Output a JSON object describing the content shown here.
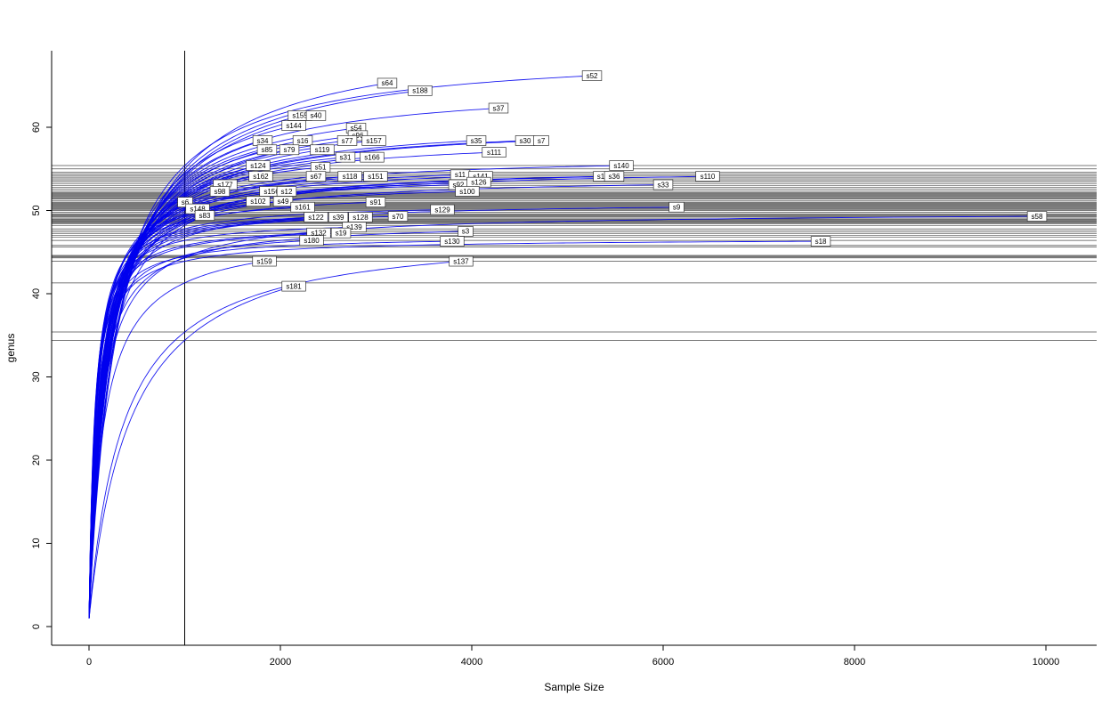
{
  "chart_data": {
    "type": "line",
    "subtype": "rarefaction-curves",
    "title": "",
    "xlabel": "Sample Size",
    "ylabel": "genus",
    "xlim": [
      0,
      10500
    ],
    "ylim": [
      0,
      67
    ],
    "x_ticks": [
      0,
      2000,
      4000,
      6000,
      8000,
      10000
    ],
    "y_ticks": [
      0,
      10,
      20,
      30,
      40,
      50,
      60
    ],
    "grid": false,
    "legend_position": "none",
    "vertical_line_x": 1000,
    "colors": {
      "curve": "#0000EE",
      "richness_line": "#2e2e2e",
      "axis": "#000000",
      "label_box_fill": "#ffffff",
      "label_box_border": "#333333"
    },
    "series": [
      {
        "label": "s52",
        "x_end": 5256,
        "y_end": 66.2,
        "y_line": 55.4
      },
      {
        "label": "s64",
        "x_end": 3116,
        "y_end": 65.3,
        "y_line": 55.0
      },
      {
        "label": "s188",
        "x_end": 3460,
        "y_end": 64.4,
        "y_line": 54.6
      },
      {
        "label": "s37",
        "x_end": 4279,
        "y_end": 62.3,
        "y_line": 53.8
      },
      {
        "label": "s155",
        "x_end": 2205,
        "y_end": 61.4,
        "y_line": 54.2
      },
      {
        "label": "s40",
        "x_end": 2372,
        "y_end": 61.4,
        "y_line": 54.0
      },
      {
        "label": "s144",
        "x_end": 2140,
        "y_end": 60.2,
        "y_line": 54.4
      },
      {
        "label": "s54",
        "x_end": 2791,
        "y_end": 59.9,
        "y_line": 53.4
      },
      {
        "label": "s96",
        "x_end": 2809,
        "y_end": 59.0,
        "y_line": 53.0
      },
      {
        "label": "s34",
        "x_end": 1814,
        "y_end": 58.4,
        "y_line": 53.6
      },
      {
        "label": "s16",
        "x_end": 2233,
        "y_end": 58.4,
        "y_line": 53.2
      },
      {
        "label": "s77",
        "x_end": 2698,
        "y_end": 58.4,
        "y_line": 52.6
      },
      {
        "label": "s157",
        "x_end": 2977,
        "y_end": 58.4,
        "y_line": 52.4
      },
      {
        "label": "s35",
        "x_end": 4047,
        "y_end": 58.4,
        "y_line": 51.8
      },
      {
        "label": "s30",
        "x_end": 4558,
        "y_end": 58.4,
        "y_line": 51.6
      },
      {
        "label": "s7",
        "x_end": 4726,
        "y_end": 58.4,
        "y_line": 51.4
      },
      {
        "label": "s85",
        "x_end": 1860,
        "y_end": 57.3,
        "y_line": 52.8
      },
      {
        "label": "s79",
        "x_end": 2093,
        "y_end": 57.3,
        "y_line": 52.2
      },
      {
        "label": "s119",
        "x_end": 2437,
        "y_end": 57.3,
        "y_line": 52.0
      },
      {
        "label": "s111",
        "x_end": 4233,
        "y_end": 57.0,
        "y_line": 51.2
      },
      {
        "label": "s31",
        "x_end": 2679,
        "y_end": 56.4,
        "y_line": 51.9
      },
      {
        "label": "s166",
        "x_end": 2958,
        "y_end": 56.4,
        "y_line": 51.7
      },
      {
        "label": "s124",
        "x_end": 1767,
        "y_end": 55.4,
        "y_line": 52.1
      },
      {
        "label": "s51",
        "x_end": 2419,
        "y_end": 55.2,
        "y_line": 51.5
      },
      {
        "label": "s140",
        "x_end": 5563,
        "y_end": 55.4,
        "y_line": 50.2
      },
      {
        "label": "s162",
        "x_end": 1795,
        "y_end": 54.1,
        "y_line": 51.0
      },
      {
        "label": "s67",
        "x_end": 2372,
        "y_end": 54.1,
        "y_line": 50.8
      },
      {
        "label": "s118",
        "x_end": 2726,
        "y_end": 54.1,
        "y_line": 50.6
      },
      {
        "label": "s151",
        "x_end": 2995,
        "y_end": 54.1,
        "y_line": 50.4
      },
      {
        "label": "s11",
        "x_end": 3879,
        "y_end": 54.3,
        "y_line": 50.0
      },
      {
        "label": "s141",
        "x_end": 4093,
        "y_end": 54.1,
        "y_line": 49.8
      },
      {
        "label": "s1",
        "x_end": 5349,
        "y_end": 54.1,
        "y_line": 49.0
      },
      {
        "label": "s36",
        "x_end": 5488,
        "y_end": 54.1,
        "y_line": 48.8
      },
      {
        "label": "s110",
        "x_end": 6465,
        "y_end": 54.1,
        "y_line": 48.6
      },
      {
        "label": "s177",
        "x_end": 1423,
        "y_end": 53.1,
        "y_line": 50.9
      },
      {
        "label": "s92",
        "x_end": 3860,
        "y_end": 53.1,
        "y_line": 49.4
      },
      {
        "label": "s126",
        "x_end": 4074,
        "y_end": 53.4,
        "y_line": 49.2
      },
      {
        "label": "s33",
        "x_end": 6000,
        "y_end": 53.1,
        "y_line": 48.4
      },
      {
        "label": "s98",
        "x_end": 1367,
        "y_end": 52.3,
        "y_line": 50.7
      },
      {
        "label": "s156",
        "x_end": 1907,
        "y_end": 52.3,
        "y_line": 50.3
      },
      {
        "label": "s12",
        "x_end": 2065,
        "y_end": 52.3,
        "y_line": 50.1
      },
      {
        "label": "s100",
        "x_end": 3953,
        "y_end": 52.3,
        "y_line": 48.9
      },
      {
        "label": "s6",
        "x_end": 1005,
        "y_end": 51.0,
        "y_line": 50.5
      },
      {
        "label": "s148",
        "x_end": 1135,
        "y_end": 50.2,
        "y_line": 49.6
      },
      {
        "label": "s102",
        "x_end": 1767,
        "y_end": 51.1,
        "y_line": 49.5
      },
      {
        "label": "s49",
        "x_end": 2028,
        "y_end": 51.1,
        "y_line": 49.3
      },
      {
        "label": "s161",
        "x_end": 2233,
        "y_end": 50.4,
        "y_line": 48.7
      },
      {
        "label": "s91",
        "x_end": 2995,
        "y_end": 51.0,
        "y_line": 48.5
      },
      {
        "label": "s129",
        "x_end": 3693,
        "y_end": 50.1,
        "y_line": 47.8
      },
      {
        "label": "s9",
        "x_end": 6140,
        "y_end": 50.4,
        "y_line": 46.8
      },
      {
        "label": "s83",
        "x_end": 1209,
        "y_end": 49.4,
        "y_line": 48.2
      },
      {
        "label": "s122",
        "x_end": 2372,
        "y_end": 49.2,
        "y_line": 47.6
      },
      {
        "label": "s39",
        "x_end": 2605,
        "y_end": 49.2,
        "y_line": 47.4
      },
      {
        "label": "s128",
        "x_end": 2837,
        "y_end": 49.2,
        "y_line": 47.2
      },
      {
        "label": "s70",
        "x_end": 3228,
        "y_end": 49.3,
        "y_line": 47.0
      },
      {
        "label": "s58",
        "x_end": 9907,
        "y_end": 49.3,
        "y_line": 44.4
      },
      {
        "label": "s139",
        "x_end": 2772,
        "y_end": 48.0,
        "y_line": 46.4
      },
      {
        "label": "s132",
        "x_end": 2400,
        "y_end": 47.3,
        "y_line": 45.8
      },
      {
        "label": "s19",
        "x_end": 2633,
        "y_end": 47.3,
        "y_line": 45.6
      },
      {
        "label": "s3",
        "x_end": 3935,
        "y_end": 47.5,
        "y_line": 44.3
      },
      {
        "label": "s180",
        "x_end": 2326,
        "y_end": 46.4,
        "y_line": 44.6
      },
      {
        "label": "s130",
        "x_end": 3795,
        "y_end": 46.3,
        "y_line": 44.5
      },
      {
        "label": "s18",
        "x_end": 7647,
        "y_end": 46.3,
        "y_line": 43.9
      },
      {
        "label": "s159",
        "x_end": 1833,
        "y_end": 43.9,
        "y_line": 41.3
      },
      {
        "label": "s137",
        "x_end": 3888,
        "y_end": 43.9,
        "y_line": 35.4
      },
      {
        "label": "s181",
        "x_end": 2140,
        "y_end": 40.9,
        "y_line": 34.4
      }
    ]
  }
}
